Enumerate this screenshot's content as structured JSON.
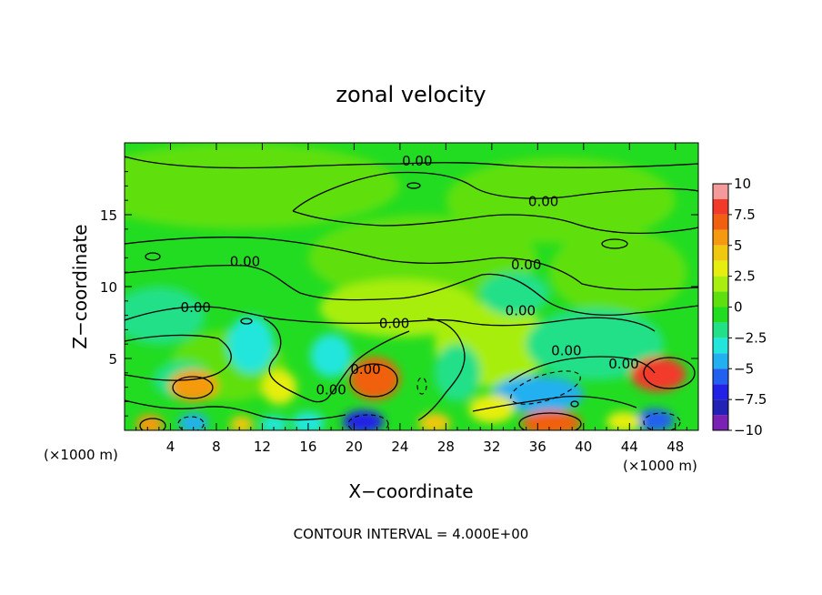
{
  "chart_data": {
    "type": "heatmap",
    "title": "zonal velocity",
    "xlabel": "X−coordinate",
    "ylabel": "Z−coordinate",
    "x_unit_left": "(×1000 m)",
    "x_unit_right": "(×1000 m)",
    "footer": "CONTOUR INTERVAL = 4.000E+00",
    "xlim": [
      0,
      50
    ],
    "ylim": [
      0,
      20
    ],
    "x_ticks": [
      4,
      8,
      12,
      16,
      20,
      24,
      28,
      32,
      36,
      40,
      44,
      48
    ],
    "y_ticks": [
      5,
      10,
      15
    ],
    "colorbar": {
      "range": [
        -10,
        10
      ],
      "ticks": [
        "10",
        "7.5",
        "5",
        "2.5",
        "0",
        "−2.5",
        "−5",
        "−7.5",
        "−10"
      ],
      "tick_values": [
        10,
        7.5,
        5,
        2.5,
        0,
        -2.5,
        -5,
        -7.5,
        -10
      ],
      "levels": [
        {
          "from": 8.75,
          "to": 10,
          "color": "#f49a9a"
        },
        {
          "from": 7.5,
          "to": 8.75,
          "color": "#f23a2a"
        },
        {
          "from": 6.25,
          "to": 7.5,
          "color": "#f06010"
        },
        {
          "from": 5,
          "to": 6.25,
          "color": "#f59a10"
        },
        {
          "from": 3.75,
          "to": 5,
          "color": "#f0c810"
        },
        {
          "from": 2.5,
          "to": 3.75,
          "color": "#e6ee10"
        },
        {
          "from": 1.25,
          "to": 2.5,
          "color": "#a8ee10"
        },
        {
          "from": 0,
          "to": 1.25,
          "color": "#5ee010"
        },
        {
          "from": -1.25,
          "to": 0,
          "color": "#22dc22"
        },
        {
          "from": -2.5,
          "to": -1.25,
          "color": "#22e088"
        },
        {
          "from": -3.75,
          "to": -2.5,
          "color": "#22e6dc"
        },
        {
          "from": -5,
          "to": -3.75,
          "color": "#22b0f0"
        },
        {
          "from": -6.25,
          "to": -5,
          "color": "#2260f0"
        },
        {
          "from": -7.5,
          "to": -6.25,
          "color": "#2222e6"
        },
        {
          "from": -8.75,
          "to": -7.5,
          "color": "#2222b4"
        },
        {
          "from": -10,
          "to": -8.75,
          "color": "#7a22b4"
        }
      ]
    },
    "background_color": "#22dc22",
    "features": [
      {
        "x": 10,
        "z": 17,
        "rx": 14,
        "rz": 3,
        "value": 0.6
      },
      {
        "x": 38,
        "z": 16,
        "rx": 10,
        "rz": 3,
        "value": 0.6
      },
      {
        "x": 26,
        "z": 12,
        "rx": 10,
        "rz": 3,
        "value": 0.9
      },
      {
        "x": 43,
        "z": 11,
        "rx": 6,
        "rz": 3,
        "value": 0.7
      },
      {
        "x": 24,
        "z": 8.5,
        "rx": 7,
        "rz": 2,
        "value": 2.0
      },
      {
        "x": 32,
        "z": 6,
        "rx": 5,
        "rz": 3,
        "value": 1.5
      },
      {
        "x": 9,
        "z": 4.5,
        "rx": 5,
        "rz": 2.5,
        "value": 1.2
      },
      {
        "x": 11,
        "z": 6,
        "rx": 2,
        "rz": 2,
        "value": -2.6
      },
      {
        "x": 18,
        "z": 5.2,
        "rx": 1.8,
        "rz": 1.5,
        "value": -3.0
      },
      {
        "x": 29,
        "z": 4,
        "rx": 2,
        "rz": 2,
        "value": -2.0
      },
      {
        "x": 34,
        "z": 9.5,
        "rx": 3,
        "rz": 1.5,
        "value": -1.8
      },
      {
        "x": 41,
        "z": 6,
        "rx": 6,
        "rz": 2.5,
        "value": -1.8
      },
      {
        "x": 3,
        "z": 8,
        "rx": 4,
        "rz": 2,
        "value": -1.5
      },
      {
        "x": 36,
        "z": 2.5,
        "rx": 4,
        "rz": 1.3,
        "value": -4.5
      },
      {
        "x": 5,
        "z": 3.5,
        "rx": 2.5,
        "rz": 1.3,
        "value": -2.5
      },
      {
        "x": 6,
        "z": 3.1,
        "rx": 2.1,
        "rz": 1.1,
        "value": 5.5
      },
      {
        "x": 21.8,
        "z": 3.6,
        "rx": 2.2,
        "rz": 1.5,
        "value": 7.0
      },
      {
        "x": 46.5,
        "z": 3.9,
        "rx": 2.4,
        "rz": 1.2,
        "value": 7.8
      },
      {
        "x": 37.2,
        "z": 0.5,
        "rx": 2.6,
        "rz": 0.9,
        "value": 6.5
      },
      {
        "x": 2.2,
        "z": 0.4,
        "rx": 1.2,
        "rz": 0.7,
        "value": 5.0
      },
      {
        "x": 10.2,
        "z": 0.4,
        "rx": 1.0,
        "rz": 0.6,
        "value": 4.5
      },
      {
        "x": 27,
        "z": 0.5,
        "rx": 1.4,
        "rz": 0.7,
        "value": 4.0
      },
      {
        "x": 20.8,
        "z": 0.6,
        "rx": 1.8,
        "rz": 0.8,
        "value": -6.8
      },
      {
        "x": 6,
        "z": 0.5,
        "rx": 1.3,
        "rz": 0.7,
        "value": -4.5
      },
      {
        "x": 46.2,
        "z": 0.7,
        "rx": 1.7,
        "rz": 0.8,
        "value": -6.2
      },
      {
        "x": 13,
        "z": 0.4,
        "rx": 1.2,
        "rz": 0.6,
        "value": -3.0
      },
      {
        "x": 16,
        "z": 0.5,
        "rx": 1.4,
        "rz": 0.8,
        "value": -2.8
      },
      {
        "x": 43.5,
        "z": 0.6,
        "rx": 1.5,
        "rz": 0.7,
        "value": 3.0
      },
      {
        "x": 32,
        "z": 1.5,
        "rx": 2.0,
        "rz": 1.0,
        "value": 2.5
      },
      {
        "x": 13.5,
        "z": 3,
        "rx": 1.5,
        "rz": 1.2,
        "value": 2.5
      }
    ],
    "contour_labels": [
      {
        "x": 25.5,
        "z": 18.7,
        "text": "0.00"
      },
      {
        "x": 36.5,
        "z": 15.9,
        "text": "0.00"
      },
      {
        "x": 10.5,
        "z": 11.7,
        "text": "0.00"
      },
      {
        "x": 35,
        "z": 11.5,
        "text": "0.00"
      },
      {
        "x": 6.2,
        "z": 8.5,
        "text": "0.00"
      },
      {
        "x": 23.5,
        "z": 7.4,
        "text": "0.00"
      },
      {
        "x": 34.5,
        "z": 8.3,
        "text": "0.00"
      },
      {
        "x": 21,
        "z": 4.2,
        "text": "0.00"
      },
      {
        "x": 18,
        "z": 2.8,
        "text": "0.00"
      },
      {
        "x": 38.5,
        "z": 5.5,
        "text": "0.00"
      },
      {
        "x": 43.5,
        "z": 4.6,
        "text": "0.00"
      }
    ]
  }
}
